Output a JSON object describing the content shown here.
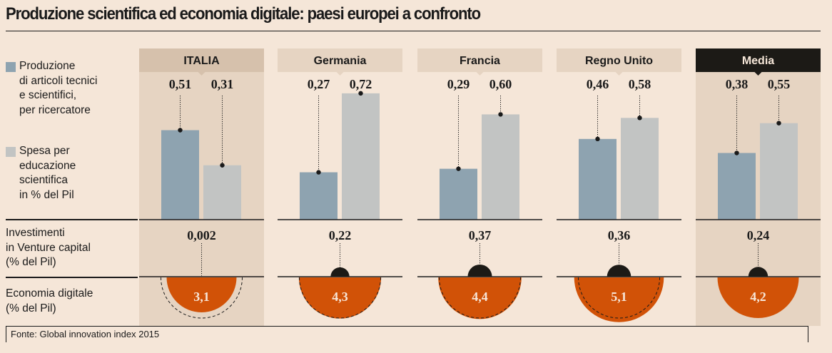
{
  "title": "Produzione scientifica ed economia digitale: paesi europei a confronto",
  "legend": [
    {
      "label_lines": [
        "Produzione",
        "di articoli tecnici",
        "e scientifici,",
        "per ricercatore"
      ],
      "color": "#8ea3b0"
    },
    {
      "label_lines": [
        "Spesa per",
        "educazione",
        "scientifica",
        "in % del Pil"
      ],
      "color": "#c2c4c3"
    }
  ],
  "row_labels": {
    "venture": [
      "Investimenti",
      "in Venture capital",
      "(% del Pil)"
    ],
    "digital": [
      "Economia digitale",
      "(% del Pil)"
    ]
  },
  "source": "Fonte: Global innovation index 2015",
  "colors": {
    "background": "#f5e6d8",
    "highlight_column": "#e6d4c2",
    "header_box": "#e6d4c2",
    "header_highlight": "#d6c1ac",
    "header_dark": "#1c1a16",
    "articles_bar": "#8ea3b0",
    "education_bar": "#c2c4c3",
    "digital_circle": "#d15207",
    "venture_dot": "#1c1a16"
  },
  "chart_data": {
    "type": "bar",
    "title": "Produzione scientifica ed economia digitale: paesi europei a confronto",
    "categories": [
      "ITALIA",
      "Germania",
      "Francia",
      "Regno Unito",
      "Media"
    ],
    "highlighted": [
      "ITALIA",
      "Media"
    ],
    "series": [
      {
        "name": "Produzione di articoli tecnici e scientifici, per ricercatore",
        "values": [
          0.51,
          0.27,
          0.29,
          0.46,
          0.38
        ],
        "labels": [
          "0,51",
          "0,27",
          "0,29",
          "0,46",
          "0,38"
        ]
      },
      {
        "name": "Spesa per educazione scientifica in % del Pil",
        "values": [
          0.31,
          0.72,
          0.6,
          0.58,
          0.55
        ],
        "labels": [
          "0,31",
          "0,72",
          "0,60",
          "0,58",
          "0,55"
        ]
      },
      {
        "name": "Investimenti in Venture capital (% del Pil)",
        "values": [
          0.002,
          0.22,
          0.37,
          0.36,
          0.24
        ],
        "labels": [
          "0,002",
          "0,22",
          "0,37",
          "0,36",
          "0,24"
        ]
      },
      {
        "name": "Economia digitale (% del Pil)",
        "values": [
          3.1,
          4.3,
          4.4,
          5.1,
          4.2
        ],
        "labels": [
          "3,1",
          "4,3",
          "4,4",
          "5,1",
          "4,2"
        ],
        "reference_value": 4.2
      }
    ],
    "xlabel": "",
    "ylabel": "",
    "ylim": [
      0,
      0.8
    ],
    "grid": false,
    "legend_position": "left"
  }
}
